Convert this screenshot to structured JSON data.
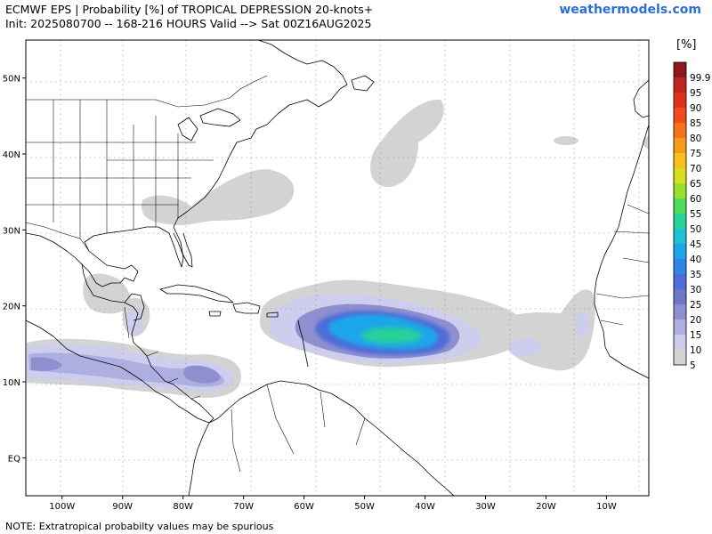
{
  "header": {
    "title_line1": "ECMWF EPS | Probability [%] of TROPICAL DEPRESSION 20-knots+",
    "title_line2": "Init: 2025080700 -- 168-216 HOURS Valid --> Sat 00Z16AUG2025",
    "brand": "weathermodels.com"
  },
  "map": {
    "lon_range": [
      -106,
      -3
    ],
    "lat_range": [
      -5,
      55
    ],
    "lon_ticks": [
      {
        "lon": -100,
        "label": "100W"
      },
      {
        "lon": -90,
        "label": "90W"
      },
      {
        "lon": -80,
        "label": "80W"
      },
      {
        "lon": -70,
        "label": "70W"
      },
      {
        "lon": -60,
        "label": "60W"
      },
      {
        "lon": -50,
        "label": "50W"
      },
      {
        "lon": -40,
        "label": "40W"
      },
      {
        "lon": -30,
        "label": "30W"
      },
      {
        "lon": -20,
        "label": "20W"
      },
      {
        "lon": -10,
        "label": "10W"
      }
    ],
    "lat_ticks": [
      {
        "lat": 50,
        "label": "50N"
      },
      {
        "lat": 40,
        "label": "40N"
      },
      {
        "lat": 30,
        "label": "30N"
      },
      {
        "lat": 20,
        "label": "20N"
      },
      {
        "lat": 10,
        "label": "10N"
      },
      {
        "lat": 0,
        "label": "EQ"
      }
    ],
    "gridlines": true
  },
  "colorbar": {
    "unit_label": "[%]",
    "levels": [
      {
        "label": "99.9",
        "color": "#8b1a1a"
      },
      {
        "label": "95",
        "color": "#c0251f"
      },
      {
        "label": "90",
        "color": "#e0301e"
      },
      {
        "label": "85",
        "color": "#f24a1c"
      },
      {
        "label": "80",
        "color": "#f7731a"
      },
      {
        "label": "75",
        "color": "#f99b1a"
      },
      {
        "label": "70",
        "color": "#f5c21a"
      },
      {
        "label": "65",
        "color": "#d8e01e"
      },
      {
        "label": "60",
        "color": "#96df2d"
      },
      {
        "label": "55",
        "color": "#4fdb5c"
      },
      {
        "label": "50",
        "color": "#28d29a"
      },
      {
        "label": "45",
        "color": "#1fc2d3"
      },
      {
        "label": "40",
        "color": "#1ea6ea"
      },
      {
        "label": "35",
        "color": "#2f86e8"
      },
      {
        "label": "30",
        "color": "#4d6dd8"
      },
      {
        "label": "25",
        "color": "#7077c7"
      },
      {
        "label": "20",
        "color": "#8f8fd0"
      },
      {
        "label": "15",
        "color": "#aeaee0"
      },
      {
        "label": "10",
        "color": "#cdcdee"
      },
      {
        "label": "5",
        "color": "#d3d3d3"
      }
    ]
  },
  "probability_regions": [
    {
      "id": "mdr-main",
      "level": "5",
      "color": "#d3d3d3"
    },
    {
      "id": "mdr-main",
      "level": "10",
      "color": "#cdcdee"
    },
    {
      "id": "mdr-main",
      "level": "20",
      "color": "#8f8fd0"
    },
    {
      "id": "mdr-main",
      "level": "30",
      "color": "#4d6dd8"
    },
    {
      "id": "mdr-main",
      "level": "40",
      "color": "#1ea6ea"
    },
    {
      "id": "mdr-main",
      "level": "50",
      "color": "#28d29a"
    },
    {
      "id": "east-pacific",
      "level": "10",
      "color": "#cdcdee"
    },
    {
      "id": "east-pacific",
      "level": "15",
      "color": "#aeaee0"
    }
  ],
  "footer": {
    "note": "NOTE: Extratropical probabilty values may be spurious"
  }
}
